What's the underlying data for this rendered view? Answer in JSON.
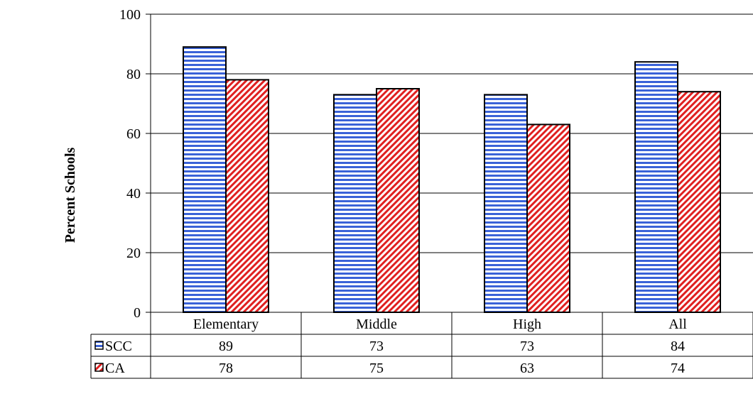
{
  "chart_data": {
    "type": "bar",
    "ylabel": "Percent Schools",
    "xlabel": "",
    "title": "",
    "ylim": [
      0,
      100
    ],
    "yticks": [
      0,
      20,
      40,
      60,
      80,
      100
    ],
    "grid": true,
    "categories": [
      "Elementary",
      "Middle",
      "High",
      "All"
    ],
    "series": [
      {
        "name": "SCC",
        "values": [
          89,
          73,
          73,
          84
        ],
        "color": "#3a62d8",
        "pattern": "horizontal-stripes"
      },
      {
        "name": "CA",
        "values": [
          78,
          75,
          63,
          74
        ],
        "color": "#e02020",
        "pattern": "diagonal-stripes"
      }
    ],
    "legend": "data-table-left"
  }
}
